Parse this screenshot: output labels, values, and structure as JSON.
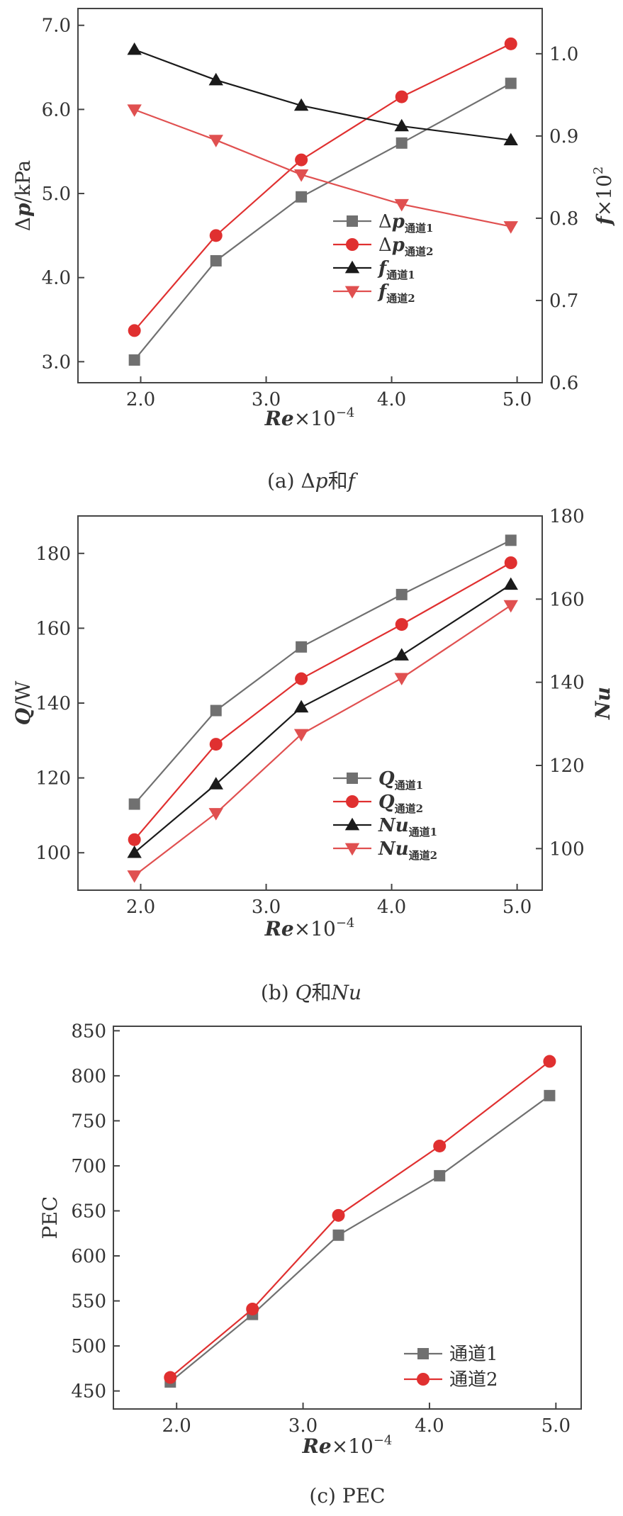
{
  "chart_data": [
    {
      "type": "line",
      "x": [
        1.95,
        2.6,
        3.28,
        4.08,
        4.95
      ],
      "xlabel": "Re×10⁻⁴",
      "xticks": [
        "2.0",
        "3.0",
        "4.0",
        "5.0"
      ],
      "xlim": [
        1.5,
        5.2
      ],
      "ylabel_left": "Δp/kPa",
      "ylim_left": [
        2.75,
        7.2
      ],
      "yticks_left": [
        "3.0",
        "4.0",
        "5.0",
        "6.0",
        "7.0"
      ],
      "ylabel_right": "f×10²",
      "ylim_right": [
        0.6,
        1.055
      ],
      "yticks_right": [
        "0.6",
        "0.7",
        "0.8",
        "0.9",
        "1.0"
      ],
      "legend_position": "bottom-right",
      "series": [
        {
          "name": "Δp通道1",
          "axis": "left",
          "color": "#707070",
          "marker": "square",
          "values": [
            3.02,
            4.2,
            4.96,
            5.6,
            6.31
          ]
        },
        {
          "name": "Δp通道2",
          "axis": "left",
          "color": "#e03030",
          "marker": "circle",
          "values": [
            3.37,
            4.5,
            5.4,
            6.15,
            6.78
          ]
        },
        {
          "name": "f通道1",
          "axis": "right",
          "color": "#1a1a1a",
          "marker": "triangle-up",
          "values": [
            1.005,
            0.968,
            0.937,
            0.912,
            0.895
          ]
        },
        {
          "name": "f通道2",
          "axis": "right",
          "color": "#e05050",
          "marker": "triangle-down",
          "values": [
            0.932,
            0.895,
            0.853,
            0.817,
            0.79
          ]
        }
      ],
      "caption": "(a) Δp和f"
    },
    {
      "type": "line",
      "x": [
        1.95,
        2.6,
        3.28,
        4.08,
        4.95
      ],
      "xlabel": "Re×10⁻⁴",
      "xticks": [
        "2.0",
        "3.0",
        "4.0",
        "5.0"
      ],
      "xlim": [
        1.5,
        5.2
      ],
      "ylabel_left": "Q/W",
      "ylim_left": [
        90,
        190
      ],
      "yticks_left": [
        "100",
        "120",
        "140",
        "160",
        "180"
      ],
      "ylabel_right": "Nu",
      "ylim_right": [
        90,
        180
      ],
      "yticks_right": [
        "100",
        "120",
        "140",
        "160",
        "180"
      ],
      "legend_position": "bottom-right",
      "series": [
        {
          "name": "Q通道1",
          "axis": "left",
          "color": "#707070",
          "marker": "square",
          "values": [
            113,
            138,
            155,
            169,
            183.5
          ]
        },
        {
          "name": "Q通道2",
          "axis": "left",
          "color": "#e03030",
          "marker": "circle",
          "values": [
            103.5,
            129,
            146.5,
            161,
            177.5
          ]
        },
        {
          "name": "Nu通道1",
          "axis": "right",
          "color": "#1a1a1a",
          "marker": "triangle-up",
          "values": [
            99,
            115.5,
            134,
            146.5,
            163.5
          ]
        },
        {
          "name": "Nu通道2",
          "axis": "right",
          "color": "#e05050",
          "marker": "triangle-down",
          "values": [
            93.5,
            108.5,
            127.5,
            141,
            158.5
          ]
        }
      ],
      "caption": "(b) Q和Nu"
    },
    {
      "type": "line",
      "x": [
        1.95,
        2.6,
        3.28,
        4.08,
        4.95
      ],
      "xlabel": "Re×10⁻⁴",
      "xticks": [
        "2.0",
        "3.0",
        "4.0",
        "5.0"
      ],
      "xlim": [
        1.5,
        5.2
      ],
      "ylabel": "PEC",
      "ylim": [
        430,
        855
      ],
      "yticks": [
        "450",
        "500",
        "550",
        "600",
        "650",
        "700",
        "750",
        "800",
        "850"
      ],
      "legend_position": "bottom-right",
      "series": [
        {
          "name": "通道1",
          "color": "#707070",
          "marker": "square",
          "values": [
            460,
            535,
            623,
            689,
            778
          ]
        },
        {
          "name": "通道2",
          "color": "#e03030",
          "marker": "circle",
          "values": [
            465,
            541,
            645,
            722,
            816
          ]
        }
      ],
      "caption": "(c) PEC"
    }
  ]
}
